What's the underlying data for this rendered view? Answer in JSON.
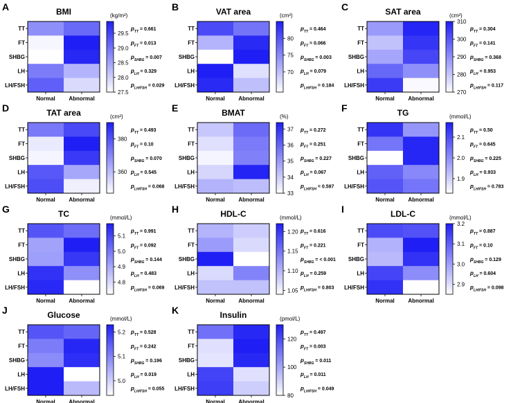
{
  "rows": [
    "TT",
    "FT",
    "SHBG",
    "LH",
    "LH/FSH"
  ],
  "columns": [
    "Normal",
    "Abnormal"
  ],
  "color_low": "#ffffff",
  "color_high": "#1f1ff5",
  "chart_data": [
    {
      "type": "heatmap",
      "letter": "A",
      "title": "BMI",
      "unit": "(kg/m²)",
      "ticks": [
        "29.5",
        "29.0",
        "28.5",
        "28.0",
        "27.5"
      ],
      "range": [
        27.5,
        29.9
      ],
      "values": [
        [
          28.7,
          29.1
        ],
        [
          27.6,
          29.9
        ],
        [
          27.5,
          29.8
        ],
        [
          28.9,
          28.3
        ],
        [
          29.2,
          27.9
        ]
      ],
      "pvalues": [
        {
          "sub": "TT",
          "value": "0.661"
        },
        {
          "sub": "FT",
          "value": "0.013"
        },
        {
          "sub": "SHBG",
          "value": "0.007"
        },
        {
          "sub": "LH",
          "value": "0.329"
        },
        {
          "sub": "LH/FSH",
          "value": "0.029"
        }
      ]
    },
    {
      "type": "heatmap",
      "letter": "B",
      "title": "VAT area",
      "unit": "(cm²)",
      "ticks": [
        "80",
        "75",
        "70"
      ],
      "range": [
        64,
        85
      ],
      "values": [
        [
          81,
          77
        ],
        [
          71,
          84
        ],
        [
          64,
          85
        ],
        [
          85,
          67
        ],
        [
          84,
          70
        ]
      ],
      "pvalues": [
        {
          "sub": "TT",
          "value": "0.464"
        },
        {
          "sub": "FT",
          "value": "0.066"
        },
        {
          "sub": "SHBG",
          "value": "0.003"
        },
        {
          "sub": "LH",
          "value": "0.079"
        },
        {
          "sub": "LH/FSH",
          "value": "0.184"
        }
      ]
    },
    {
      "type": "heatmap",
      "letter": "C",
      "title": "SAT area",
      "unit": "(cm²)",
      "ticks": [
        "310",
        "300",
        "290",
        "280",
        "270"
      ],
      "range": [
        270,
        310
      ],
      "values": [
        [
          288,
          309
        ],
        [
          281,
          306
        ],
        [
          286,
          303
        ],
        [
          297,
          290
        ],
        [
          305,
          271
        ]
      ],
      "pvalues": [
        {
          "sub": "TT",
          "value": "0.304"
        },
        {
          "sub": "FT",
          "value": "0.141"
        },
        {
          "sub": "SHBG",
          "value": "0.368"
        },
        {
          "sub": "LH",
          "value": "0.953"
        },
        {
          "sub": "LH/FSH",
          "value": "0.117"
        }
      ]
    },
    {
      "type": "heatmap",
      "letter": "D",
      "title": "TAT area",
      "unit": "(cm²)",
      "ticks": [
        "380",
        "360"
      ],
      "range": [
        347,
        390
      ],
      "values": [
        [
          373,
          382
        ],
        [
          351,
          390
        ],
        [
          349,
          385
        ],
        [
          379,
          364
        ],
        [
          381,
          350
        ]
      ],
      "pvalues": [
        {
          "sub": "TT",
          "value": "0.493"
        },
        {
          "sub": "FT",
          "value": "0.10"
        },
        {
          "sub": "SHBG",
          "value": "0.070"
        },
        {
          "sub": "LH",
          "value": "0.545"
        },
        {
          "sub": "LH/FSH",
          "value": "0.068"
        }
      ]
    },
    {
      "type": "heatmap",
      "letter": "E",
      "title": "BMAT",
      "unit": "(%)",
      "ticks": [
        "37",
        "36",
        "35",
        "34",
        "33"
      ],
      "range": [
        33,
        37.4
      ],
      "values": [
        [
          34.1,
          35.9
        ],
        [
          33.6,
          35.6
        ],
        [
          33.2,
          35.5
        ],
        [
          33.8,
          37.3
        ],
        [
          34.5,
          34.3
        ]
      ],
      "pvalues": [
        {
          "sub": "TT",
          "value": "0.272"
        },
        {
          "sub": "FT",
          "value": "0.251"
        },
        {
          "sub": "SHBG",
          "value": "0.227"
        },
        {
          "sub": "LH",
          "value": "0.067"
        },
        {
          "sub": "LH/FSH",
          "value": "0.597"
        }
      ]
    },
    {
      "type": "heatmap",
      "letter": "F",
      "title": "TG",
      "unit": "(mmol/L)",
      "ticks": [
        "2.1",
        "2.0",
        "1.9"
      ],
      "range": [
        1.83,
        2.17
      ],
      "values": [
        [
          2.14,
          1.99
        ],
        [
          2.04,
          2.16
        ],
        [
          1.83,
          2.16
        ],
        [
          2.07,
          2.01
        ],
        [
          2.09,
          2.04
        ]
      ],
      "pvalues": [
        {
          "sub": "TT",
          "value": "0.50"
        },
        {
          "sub": "FT",
          "value": "0.645"
        },
        {
          "sub": "SHBG",
          "value": "0.225"
        },
        {
          "sub": "LH",
          "value": "0.933"
        },
        {
          "sub": "LH/FSH",
          "value": "0.783"
        }
      ]
    },
    {
      "type": "heatmap",
      "letter": "G",
      "title": "TC",
      "unit": "(mmol/L)",
      "ticks": [
        "5.1",
        "5.0",
        "4.9",
        "4.8"
      ],
      "range": [
        4.72,
        5.18
      ],
      "values": [
        [
          5.07,
          5.02
        ],
        [
          4.91,
          5.18
        ],
        [
          4.92,
          5.13
        ],
        [
          5.14,
          4.95
        ],
        [
          5.16,
          4.72
        ]
      ],
      "pvalues": [
        {
          "sub": "TT",
          "value": "0.991"
        },
        {
          "sub": "FT",
          "value": "0.092"
        },
        {
          "sub": "SHBG",
          "value": "0.144"
        },
        {
          "sub": "LH",
          "value": "0.483"
        },
        {
          "sub": "LH/FSH",
          "value": "0.069"
        }
      ]
    },
    {
      "type": "heatmap",
      "letter": "H",
      "title": "HDL-C",
      "unit": "(mmol/L)",
      "ticks": [
        "1.20",
        "1.15",
        "1.10",
        "1.05"
      ],
      "range": [
        1.04,
        1.22
      ],
      "values": [
        [
          1.1,
          1.08
        ],
        [
          1.12,
          1.07
        ],
        [
          1.22,
          1.04
        ],
        [
          1.07,
          1.14
        ],
        [
          1.09,
          1.09
        ]
      ],
      "pvalues": [
        {
          "sub": "TT",
          "value": "0.616"
        },
        {
          "sub": "FT",
          "value": "0.221"
        },
        {
          "sub": "SHBG",
          "value": "< 0.001"
        },
        {
          "sub": "LH",
          "value": "0.259"
        },
        {
          "sub": "LH/FSH",
          "value": "0.803"
        }
      ]
    },
    {
      "type": "heatmap",
      "letter": "I",
      "title": "LDL-C",
      "unit": "(mmol/L)",
      "ticks": [
        "3.2",
        "3.1",
        "3.0",
        "2.9"
      ],
      "range": [
        2.85,
        3.2
      ],
      "values": [
        [
          3.13,
          3.12
        ],
        [
          2.97,
          3.2
        ],
        [
          2.96,
          3.17
        ],
        [
          3.14,
          3.03
        ],
        [
          3.17,
          2.85
        ]
      ],
      "pvalues": [
        {
          "sub": "TT",
          "value": "0.887"
        },
        {
          "sub": "FT",
          "value": "0.10"
        },
        {
          "sub": "SHBG",
          "value": "0.129"
        },
        {
          "sub": "LH",
          "value": "0.604"
        },
        {
          "sub": "LH/FSH",
          "value": "0.098"
        }
      ]
    },
    {
      "type": "heatmap",
      "letter": "J",
      "title": "Glucose",
      "unit": "(mmol/L)",
      "ticks": [
        "5.2",
        "5.1",
        "5.0"
      ],
      "range": [
        4.94,
        5.23
      ],
      "values": [
        [
          5.16,
          5.14
        ],
        [
          5.11,
          5.22
        ],
        [
          5.09,
          5.21
        ],
        [
          5.23,
          4.94
        ],
        [
          5.23,
          5.03
        ]
      ],
      "pvalues": [
        {
          "sub": "TT",
          "value": "0.528"
        },
        {
          "sub": "FT",
          "value": "0.242"
        },
        {
          "sub": "SHBG",
          "value": "0.196"
        },
        {
          "sub": "LH",
          "value": "0.019"
        },
        {
          "sub": "LH/FSH",
          "value": "0.055"
        }
      ]
    },
    {
      "type": "heatmap",
      "letter": "K",
      "title": "Insulin",
      "unit": "(pmol/L)",
      "ticks": [
        "120",
        "100",
        "80"
      ],
      "range": [
        80,
        130
      ],
      "values": [
        [
          112,
          128
        ],
        [
          87,
          130
        ],
        [
          86,
          128
        ],
        [
          122,
          87
        ],
        [
          123,
          91
        ]
      ],
      "pvalues": [
        {
          "sub": "TT",
          "value": "0.497"
        },
        {
          "sub": "FT",
          "value": "0.003"
        },
        {
          "sub": "SHBG",
          "value": "0.011"
        },
        {
          "sub": "LH",
          "value": "0.011"
        },
        {
          "sub": "LH/FSH",
          "value": "0.049"
        }
      ]
    }
  ]
}
